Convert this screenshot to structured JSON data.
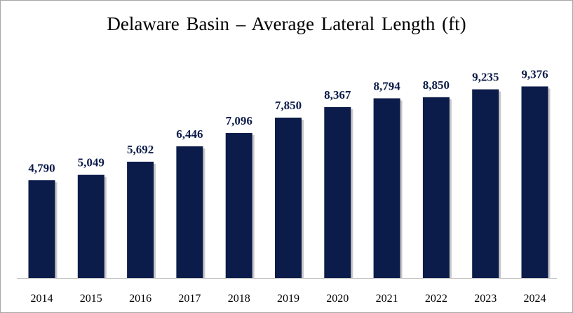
{
  "chart_data": {
    "type": "bar",
    "title": "Delaware Basin – Average Lateral Length (ft)",
    "xlabel": "",
    "ylabel": "",
    "categories": [
      "2014",
      "2015",
      "2016",
      "2017",
      "2018",
      "2019",
      "2020",
      "2021",
      "2022",
      "2023",
      "2024"
    ],
    "values": [
      4790,
      5049,
      5692,
      6446,
      7096,
      7850,
      8367,
      8794,
      8850,
      9235,
      9376
    ],
    "data_labels": [
      "4,790",
      "5,049",
      "5,692",
      "6,446",
      "7,096",
      "7,850",
      "8,367",
      "8,794",
      "8,850",
      "9,235",
      "9,376"
    ],
    "ylim": [
      0,
      10000
    ],
    "grid": false,
    "legend": "none",
    "colors": {
      "bar": "#0c1c4a",
      "bar_shadow": "#c9c9c9",
      "label": "#0c1c4a",
      "axis": "#bfbfbf",
      "tick_text": "#000000"
    }
  }
}
